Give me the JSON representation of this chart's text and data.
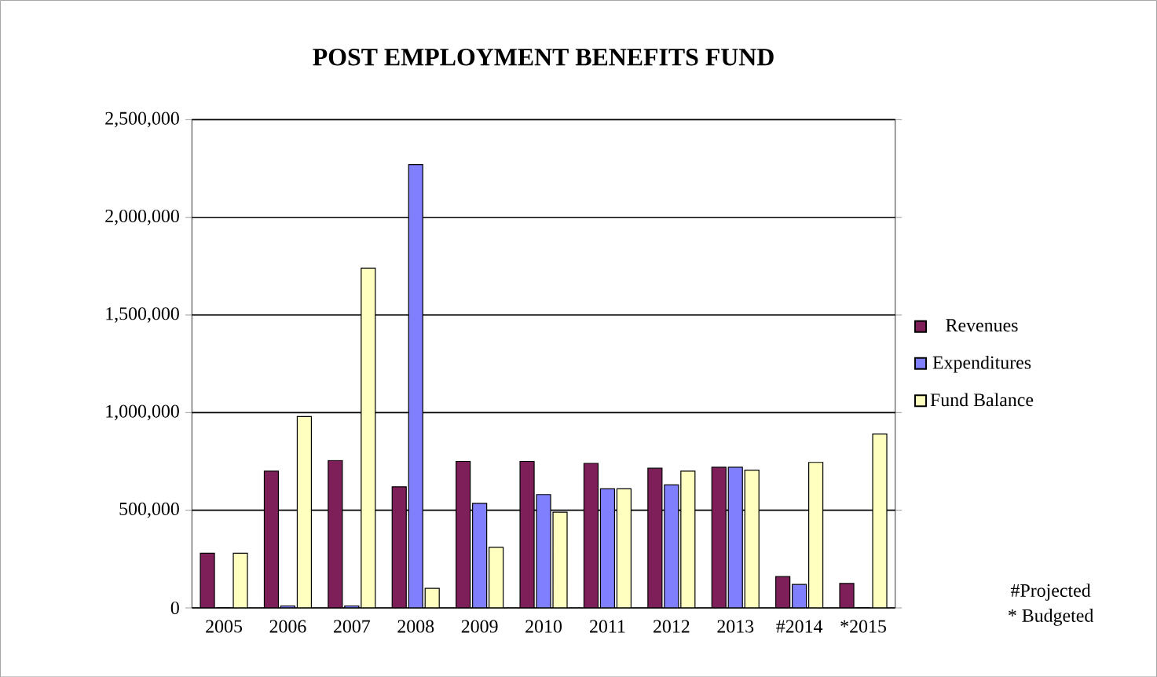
{
  "chart_data": {
    "type": "bar",
    "title": "POST EMPLOYMENT BENEFITS FUND",
    "categories": [
      "2005",
      "2006",
      "2007",
      "2008",
      "2009",
      "2010",
      "2011",
      "2012",
      "2013",
      "#2014",
      "*2015"
    ],
    "series": [
      {
        "name": "Revenues",
        "color": "#7f1f5a",
        "values": [
          280000,
          700000,
          755000,
          620000,
          750000,
          750000,
          740000,
          715000,
          720000,
          160000,
          125000
        ]
      },
      {
        "name": "Expenditures",
        "color": "#8080ff",
        "values": [
          0,
          10000,
          10000,
          2270000,
          535000,
          580000,
          610000,
          630000,
          720000,
          120000,
          0
        ]
      },
      {
        "name": "Fund Balance",
        "color": "#ffffc0",
        "values": [
          280000,
          980000,
          1740000,
          100000,
          310000,
          490000,
          610000,
          700000,
          705000,
          745000,
          890000
        ]
      }
    ],
    "ylim": [
      0,
      2500000
    ],
    "yticks": [
      {
        "value": 0,
        "label": "0"
      },
      {
        "value": 500000,
        "label": "500,000"
      },
      {
        "value": 1000000,
        "label": "1,000,000"
      },
      {
        "value": 1500000,
        "label": "1,500,000"
      },
      {
        "value": 2000000,
        "label": "2,000,000"
      },
      {
        "value": 2500000,
        "label": "2,500,000"
      }
    ],
    "grid": "y",
    "legend": "right",
    "annotations": [
      "#Projected",
      "*  Budgeted"
    ]
  }
}
